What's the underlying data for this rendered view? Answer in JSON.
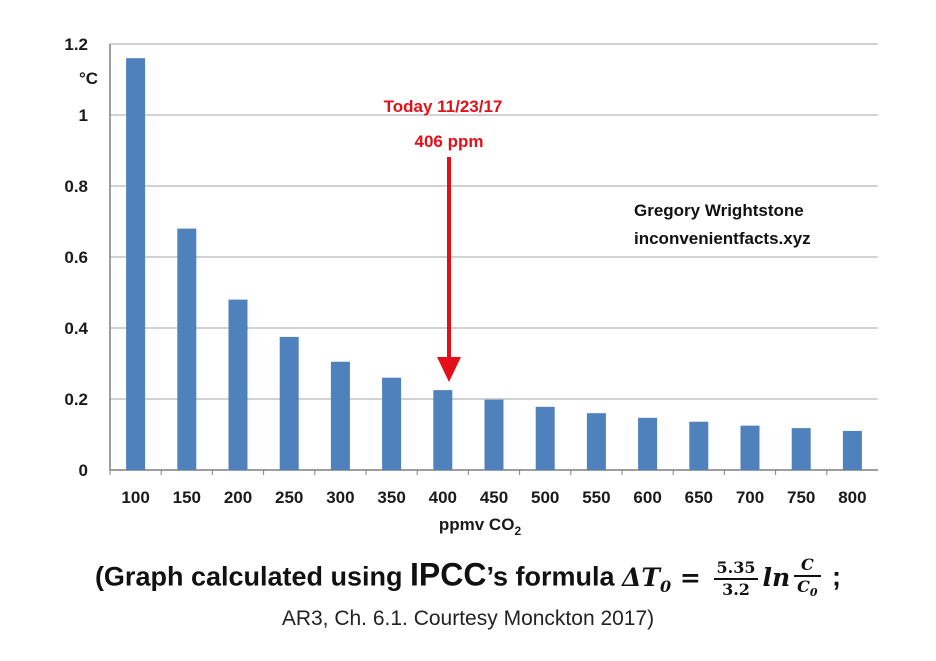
{
  "chart_data": {
    "type": "bar",
    "categories": [
      "100",
      "150",
      "200",
      "250",
      "300",
      "350",
      "400",
      "450",
      "500",
      "550",
      "600",
      "650",
      "700",
      "750",
      "800"
    ],
    "values": [
      1.16,
      0.68,
      0.48,
      0.375,
      0.305,
      0.26,
      0.225,
      0.198,
      0.178,
      0.16,
      0.147,
      0.136,
      0.125,
      0.118,
      0.11
    ],
    "ylim": [
      0,
      1.2
    ],
    "yticks": [
      0,
      0.2,
      0.4,
      0.6,
      0.8,
      1,
      1.2
    ],
    "ytick_labels": [
      "0",
      "0.2",
      "0.4",
      "0.6",
      "0.8",
      "1",
      "1.2"
    ],
    "ylabel": "°C",
    "xlabel": "ppmv CO",
    "xlabel_sub": "2",
    "grid": true,
    "bar_color": "#4f81bd",
    "grid_color": "#a6a6a6",
    "annotation": {
      "line1": "Today 11/23/17",
      "line2": "406 ppm",
      "target_category": "400",
      "color": "#e3101a"
    },
    "credit": {
      "line1": "Gregory Wrightstone",
      "line2": "inconvenientfacts.xyz"
    }
  },
  "caption": {
    "part1": "(Graph calculated using ",
    "ipcc": "IPCC",
    "part2": "’s formula ",
    "formula_lhs": "ΔT",
    "formula_sub": "0",
    "formula_eq": " = ",
    "frac_num": "5.35",
    "frac_den": "3.2",
    "ln": "ln",
    "c_num": "C",
    "c_den": "C",
    "c_den_sub": "0",
    "tail": " ;",
    "line2": "AR3, Ch. 6.1. Courtesy Monckton 2017)"
  }
}
